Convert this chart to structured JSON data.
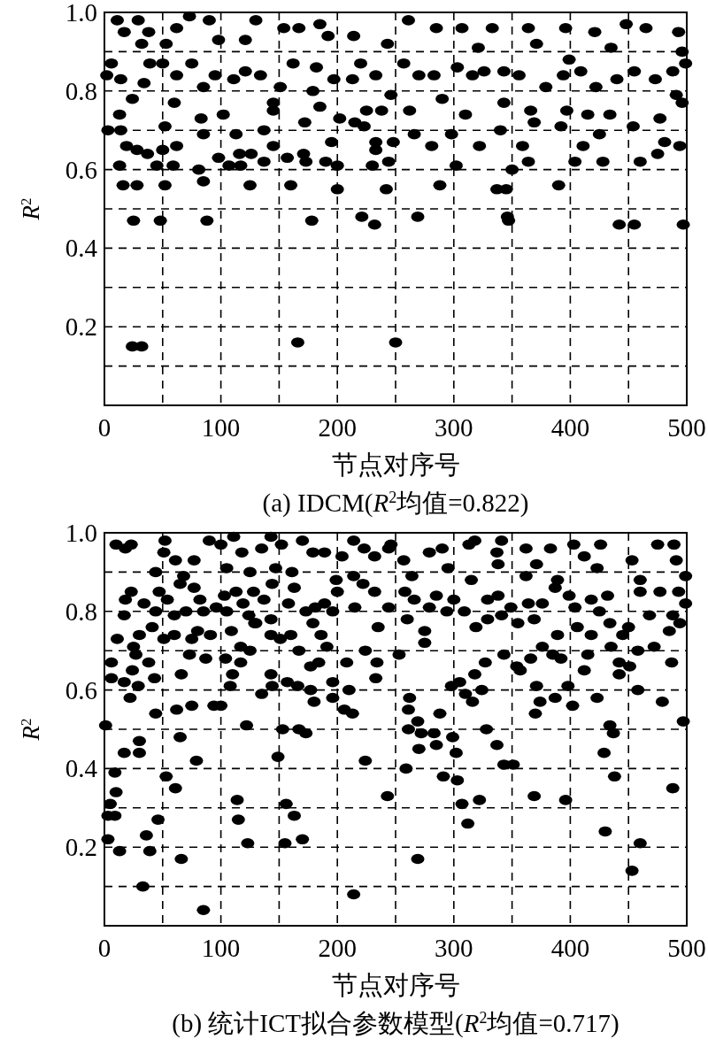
{
  "chart_data": [
    {
      "type": "scatter",
      "title": "(a) IDCM(*R*$^{2}$均值=0.822)",
      "xlabel": "节点对序号",
      "ylabel": "*R*$^{2}$",
      "color": "#000000",
      "marker": "circle",
      "grid": true,
      "xlim": [
        0,
        500
      ],
      "ylim": [
        0,
        1
      ],
      "xticks": [
        0,
        {
          "value": 50,
          "label": null
        },
        100,
        {
          "value": 150,
          "label": null
        },
        200,
        {
          "value": 250,
          "label": null
        },
        300,
        {
          "value": 350,
          "label": null
        },
        400,
        {
          "value": 450,
          "label": null
        },
        500
      ],
      "yticks": [
        {
          "value": 0.1,
          "label": null
        },
        0.2,
        {
          "value": 0.3,
          "label": null
        },
        0.4,
        {
          "value": 0.5,
          "label": null
        },
        0.6,
        {
          "value": 0.7,
          "label": null
        },
        0.8,
        {
          "value": 0.9,
          "label": null
        },
        {
          "value": 1,
          "label": "1.0"
        }
      ],
      "x": [
        24,
        32,
        166,
        250,
        25,
        48,
        88,
        178,
        221,
        232,
        269,
        346,
        347,
        442,
        455,
        497,
        16,
        28,
        52,
        85,
        125,
        160,
        200,
        242,
        288,
        337,
        345,
        390,
        13,
        45,
        59,
        81,
        107,
        117,
        137,
        173,
        190,
        200,
        230,
        244,
        302,
        350,
        364,
        404,
        428,
        460,
        475,
        3,
        14,
        19,
        28,
        37,
        50,
        52,
        62,
        85,
        98,
        113,
        116,
        126,
        137,
        145,
        157,
        171,
        195,
        202,
        215,
        223,
        233,
        233,
        248,
        266,
        281,
        298,
        322,
        340,
        359,
        369,
        392,
        411,
        425,
        454,
        477,
        481,
        494,
        13,
        24,
        60,
        83,
        102,
        145,
        145,
        172,
        179,
        185,
        225,
        238,
        262,
        290,
        310,
        343,
        366,
        397,
        415,
        434,
        496,
        491,
        2,
        6,
        14,
        34,
        39,
        50,
        62,
        75,
        85,
        95,
        111,
        121,
        134,
        151,
        162,
        182,
        197,
        213,
        220,
        233,
        246,
        257,
        270,
        283,
        303,
        316,
        326,
        343,
        356,
        379,
        394,
        409,
        422,
        440,
        455,
        473,
        488,
        499,
        11,
        29,
        17,
        38,
        32,
        53,
        73,
        62,
        90,
        98,
        130,
        121,
        154,
        167,
        185,
        192,
        214,
        243,
        261,
        285,
        307,
        333,
        364,
        396,
        421,
        448,
        465,
        493,
        496,
        371,
        321,
        435,
        399
      ],
      "values": [
        0.15,
        0.15,
        0.16,
        0.16,
        0.47,
        0.47,
        0.47,
        0.47,
        0.48,
        0.46,
        0.48,
        0.48,
        0.47,
        0.46,
        0.46,
        0.46,
        0.56,
        0.56,
        0.56,
        0.57,
        0.56,
        0.56,
        0.55,
        0.55,
        0.56,
        0.55,
        0.55,
        0.56,
        0.61,
        0.61,
        0.61,
        0.6,
        0.61,
        0.61,
        0.62,
        0.62,
        0.62,
        0.61,
        0.61,
        0.62,
        0.61,
        0.6,
        0.62,
        0.62,
        0.62,
        0.62,
        0.64,
        0.7,
        0.7,
        0.66,
        0.65,
        0.64,
        0.65,
        0.71,
        0.66,
        0.69,
        0.63,
        0.69,
        0.64,
        0.64,
        0.7,
        0.66,
        0.63,
        0.64,
        0.67,
        0.73,
        0.72,
        0.71,
        0.67,
        0.65,
        0.67,
        0.69,
        0.66,
        0.69,
        0.66,
        0.7,
        0.66,
        0.72,
        0.71,
        0.66,
        0.69,
        0.71,
        0.73,
        0.67,
        0.66,
        0.74,
        0.78,
        0.77,
        0.73,
        0.74,
        0.77,
        0.75,
        0.72,
        0.8,
        0.76,
        0.75,
        0.75,
        0.75,
        0.78,
        0.74,
        0.77,
        0.75,
        0.75,
        0.74,
        0.74,
        0.77,
        0.79,
        0.84,
        0.87,
        0.83,
        0.82,
        0.87,
        0.87,
        0.84,
        0.87,
        0.81,
        0.84,
        0.83,
        0.85,
        0.84,
        0.81,
        0.87,
        0.86,
        0.83,
        0.83,
        0.87,
        0.84,
        0.79,
        0.87,
        0.84,
        0.84,
        0.86,
        0.84,
        0.85,
        0.85,
        0.84,
        0.81,
        0.84,
        0.85,
        0.81,
        0.83,
        0.85,
        0.83,
        0.85,
        0.87,
        0.98,
        0.98,
        0.95,
        0.95,
        0.92,
        0.92,
        0.99,
        0.96,
        0.98,
        0.93,
        0.98,
        0.93,
        0.96,
        0.96,
        0.97,
        0.94,
        0.94,
        0.92,
        0.98,
        0.96,
        0.96,
        0.96,
        0.96,
        0.96,
        0.95,
        0.97,
        0.96,
        0.95,
        0.9,
        0.92,
        0.91,
        0.91,
        0.88
      ]
    },
    {
      "type": "scatter",
      "title": "(b) 统计ICT拟合参数模型(*R*$^{2}$均值=0.717)",
      "xlabel": "节点对序号",
      "ylabel": "*R*$^{2}$",
      "color": "#000000",
      "marker": "circle",
      "grid": true,
      "xlim": [
        0,
        500
      ],
      "ylim": [
        0,
        1
      ],
      "xticks": [
        0,
        {
          "value": 50,
          "label": null
        },
        100,
        {
          "value": 150,
          "label": null
        },
        200,
        {
          "value": 250,
          "label": null
        },
        300,
        {
          "value": 350,
          "label": null
        },
        400,
        {
          "value": 450,
          "label": null
        },
        500
      ],
      "yticks": [
        {
          "value": 0.1,
          "label": null
        },
        0.2,
        {
          "value": 0.3,
          "label": null
        },
        0.4,
        {
          "value": 0.5,
          "label": null
        },
        0.6,
        {
          "value": 0.7,
          "label": null
        },
        0.8,
        {
          "value": 0.9,
          "label": null
        },
        {
          "value": 1,
          "label": "1.0"
        }
      ],
      "x": [
        85,
        33,
        214,
        66,
        13,
        39,
        36,
        3,
        46,
        123,
        155,
        170,
        115,
        163,
        156,
        114,
        3,
        9,
        5,
        10,
        9,
        53,
        61,
        79,
        17,
        30,
        30,
        65,
        1,
        149,
        224,
        243,
        122,
        153,
        167,
        173,
        44,
        62,
        75,
        94,
        100,
        22,
        135,
        180,
        196,
        206,
        213,
        6,
        17,
        29,
        6,
        24,
        43,
        66,
        108,
        117,
        110,
        104,
        144,
        143,
        157,
        166,
        177,
        177,
        184,
        196,
        208,
        210,
        233,
        234,
        224,
        11,
        25,
        30,
        41,
        38,
        27,
        51,
        60,
        75,
        73,
        80,
        91,
        87,
        109,
        117,
        125,
        129,
        143,
        143,
        151,
        160,
        167,
        179,
        186,
        191,
        235,
        17,
        18,
        23,
        34,
        44,
        54,
        47,
        60,
        65,
        70,
        77,
        82,
        85,
        96,
        103,
        105,
        113,
        119,
        124,
        130,
        128,
        137,
        144,
        158,
        163,
        173,
        181,
        189,
        196,
        200,
        215,
        222,
        232,
        244,
        10,
        18,
        23,
        52,
        51,
        44,
        61,
        77,
        68,
        90,
        100,
        111,
        118,
        105,
        125,
        143,
        135,
        152,
        147,
        161,
        170,
        179,
        189,
        204,
        214,
        223,
        232,
        244,
        199,
        214,
        269,
        453,
        460,
        430,
        312,
        307,
        322,
        369,
        396,
        488,
        259,
        291,
        303,
        343,
        351,
        438,
        429,
        270,
        285,
        302,
        299,
        337,
        272,
        283,
        328,
        261,
        437,
        434,
        497,
        269,
        261,
        288,
        370,
        374,
        387,
        402,
        262,
        316,
        310,
        324,
        298,
        305,
        371,
        398,
        423,
        458,
        479,
        318,
        327,
        343,
        354,
        357,
        253,
        366,
        385,
        392,
        415,
        412,
        442,
        442,
        451,
        487,
        376,
        435,
        458,
        472,
        275,
        275,
        319,
        355,
        369,
        389,
        406,
        418,
        434,
        445,
        450,
        485,
        494,
        329,
        260,
        258,
        266,
        279,
        294,
        309,
        285,
        300,
        329,
        341,
        338,
        349,
        364,
        376,
        387,
        399,
        404,
        418,
        425,
        432,
        460,
        468,
        477,
        493,
        499,
        488,
        246,
        257,
        279,
        290,
        295,
        318,
        313,
        341,
        337,
        362,
        383,
        371,
        338,
        403,
        412,
        426,
        423,
        453,
        475,
        489,
        491,
        499,
        460,
        389,
        362,
        315,
        264
      ],
      "values": [
        0.04,
        0.1,
        0.08,
        0.17,
        0.19,
        0.19,
        0.23,
        0.22,
        0.27,
        0.21,
        0.21,
        0.22,
        0.27,
        0.28,
        0.31,
        0.32,
        0.28,
        0.28,
        0.31,
        0.34,
        0.39,
        0.38,
        0.35,
        0.42,
        0.44,
        0.44,
        0.47,
        0.48,
        0.51,
        0.43,
        0.42,
        0.33,
        0.51,
        0.5,
        0.5,
        0.49,
        0.54,
        0.55,
        0.56,
        0.56,
        0.56,
        0.58,
        0.59,
        0.57,
        0.58,
        0.55,
        0.54,
        0.63,
        0.62,
        0.61,
        0.67,
        0.65,
        0.63,
        0.64,
        0.61,
        0.67,
        0.64,
        0.68,
        0.61,
        0.64,
        0.62,
        0.61,
        0.6,
        0.66,
        0.67,
        0.62,
        0.67,
        0.6,
        0.63,
        0.67,
        0.7,
        0.73,
        0.71,
        0.74,
        0.76,
        0.67,
        0.69,
        0.73,
        0.74,
        0.73,
        0.69,
        0.75,
        0.74,
        0.68,
        0.75,
        0.71,
        0.7,
        0.77,
        0.78,
        0.74,
        0.73,
        0.74,
        0.7,
        0.77,
        0.74,
        0.71,
        0.76,
        0.79,
        0.83,
        0.85,
        0.82,
        0.8,
        0.83,
        0.85,
        0.79,
        0.87,
        0.8,
        0.86,
        0.83,
        0.8,
        0.81,
        0.84,
        0.8,
        0.85,
        0.82,
        0.79,
        0.77,
        0.85,
        0.83,
        0.87,
        0.82,
        0.86,
        0.8,
        0.81,
        0.82,
        0.8,
        0.85,
        0.81,
        0.87,
        0.85,
        0.81,
        0.97,
        0.96,
        0.97,
        0.98,
        0.95,
        0.9,
        0.93,
        0.93,
        0.89,
        0.98,
        0.97,
        0.99,
        0.95,
        0.91,
        0.9,
        0.99,
        0.96,
        0.97,
        0.91,
        0.9,
        0.98,
        0.95,
        0.95,
        0.94,
        0.98,
        0.96,
        0.94,
        0.96,
        0.88,
        0.89,
        0.17,
        0.14,
        0.21,
        0.24,
        0.26,
        0.31,
        0.32,
        0.33,
        0.32,
        0.35,
        0.4,
        0.38,
        0.37,
        0.41,
        0.41,
        0.38,
        0.44,
        0.45,
        0.46,
        0.44,
        0.48,
        0.46,
        0.49,
        0.49,
        0.5,
        0.5,
        0.49,
        0.51,
        0.52,
        0.52,
        0.55,
        0.54,
        0.54,
        0.57,
        0.58,
        0.56,
        0.58,
        0.57,
        0.59,
        0.6,
        0.61,
        0.62,
        0.61,
        0.61,
        0.58,
        0.6,
        0.57,
        0.64,
        0.67,
        0.69,
        0.66,
        0.65,
        0.69,
        0.68,
        0.69,
        0.68,
        0.69,
        0.65,
        0.67,
        0.64,
        0.66,
        0.67,
        0.71,
        0.71,
        0.7,
        0.71,
        0.72,
        0.75,
        0.76,
        0.77,
        0.78,
        0.74,
        0.76,
        0.74,
        0.77,
        0.74,
        0.76,
        0.75,
        0.77,
        0.78,
        0.78,
        0.85,
        0.83,
        0.81,
        0.8,
        0.8,
        0.84,
        0.83,
        0.83,
        0.79,
        0.84,
        0.81,
        0.82,
        0.82,
        0.86,
        0.84,
        0.81,
        0.83,
        0.8,
        0.84,
        0.85,
        0.79,
        0.85,
        0.85,
        0.82,
        0.79,
        0.97,
        0.93,
        0.95,
        0.96,
        0.91,
        0.98,
        0.97,
        0.98,
        0.95,
        0.96,
        0.96,
        0.92,
        0.92,
        0.97,
        0.94,
        0.97,
        0.91,
        0.93,
        0.97,
        0.97,
        0.93,
        0.89,
        0.88,
        0.88,
        0.89,
        0.88,
        0.89
      ]
    }
  ]
}
